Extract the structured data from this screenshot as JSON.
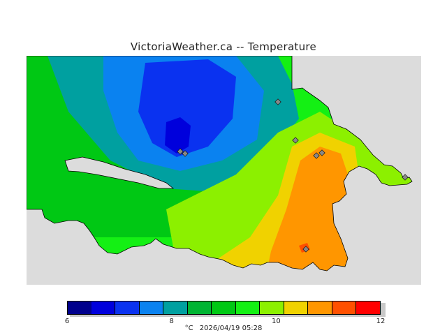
{
  "title": "VictoriaWeather.ca -- Temperature",
  "colorbar": {
    "min": 6,
    "max": 12,
    "tick_labels": [
      "6",
      "8",
      "10",
      "12"
    ],
    "tick_values": [
      6,
      8,
      10,
      12
    ],
    "colors": [
      "#00008c",
      "#0000dc",
      "#0a32f0",
      "#0a82f0",
      "#00a0a0",
      "#00b432",
      "#00c814",
      "#14f014",
      "#8cf000",
      "#f0d200",
      "#ff9600",
      "#ff5000",
      "#ff0000"
    ]
  },
  "caption": {
    "unit": "°C",
    "timestamp": "2026/04/19 05:28"
  },
  "legend_layout": "horizontal-bottom"
}
